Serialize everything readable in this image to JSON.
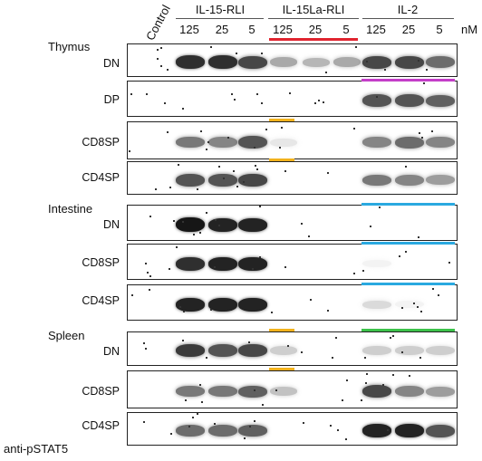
{
  "header": {
    "control": "Control",
    "groups": [
      "IL-15-RLI",
      "IL-15La-RLI",
      "IL-2"
    ],
    "concentrations": [
      "125",
      "25",
      "5",
      "125",
      "25",
      "5",
      "125",
      "25",
      "5"
    ],
    "unit": "nM"
  },
  "tissues": [
    "Thymus",
    "Intestine",
    "Spleen"
  ],
  "rows": [
    {
      "label": "DN",
      "intensity": [
        0,
        0.85,
        0.85,
        0.75,
        0.35,
        0.3,
        0.35,
        0.75,
        0.75,
        0.6
      ]
    },
    {
      "label": "DP",
      "intensity": [
        0,
        0,
        0,
        0,
        0,
        0,
        0,
        0.7,
        0.7,
        0.65
      ]
    },
    {
      "label": "CD8SP",
      "intensity": [
        0,
        0.55,
        0.5,
        0.7,
        0.1,
        0,
        0,
        0.5,
        0.6,
        0.5
      ]
    },
    {
      "label": "CD4SP",
      "intensity": [
        0,
        0.7,
        0.7,
        0.75,
        0,
        0,
        0,
        0.55,
        0.5,
        0.4
      ]
    },
    {
      "label": "DN",
      "intensity": [
        0,
        0.95,
        0.9,
        0.9,
        0,
        0,
        0,
        0,
        0,
        0
      ]
    },
    {
      "label": "CD8SP",
      "intensity": [
        0,
        0.85,
        0.9,
        0.9,
        0,
        0,
        0,
        0.05,
        0,
        0
      ]
    },
    {
      "label": "CD4SP",
      "intensity": [
        0,
        0.9,
        0.9,
        0.9,
        0,
        0,
        0,
        0.15,
        0.05,
        0
      ]
    },
    {
      "label": "DN",
      "intensity": [
        0,
        0.8,
        0.7,
        0.75,
        0.2,
        0,
        0,
        0.2,
        0.2,
        0.2
      ]
    },
    {
      "label": "CD8SP",
      "intensity": [
        0,
        0.55,
        0.55,
        0.65,
        0.25,
        0,
        0,
        0.75,
        0.5,
        0.4
      ]
    },
    {
      "label": "CD4SP",
      "intensity": [
        0,
        0.6,
        0.6,
        0.65,
        0,
        0,
        0,
        0.9,
        0.9,
        0.7
      ]
    }
  ],
  "colors": {
    "red": "#e0242f",
    "magenta": "#c43ec8",
    "orange": "#f2b21c",
    "blue": "#2aa9e0",
    "green": "#3cc24a"
  },
  "footer": "anti-pSTAT5"
}
